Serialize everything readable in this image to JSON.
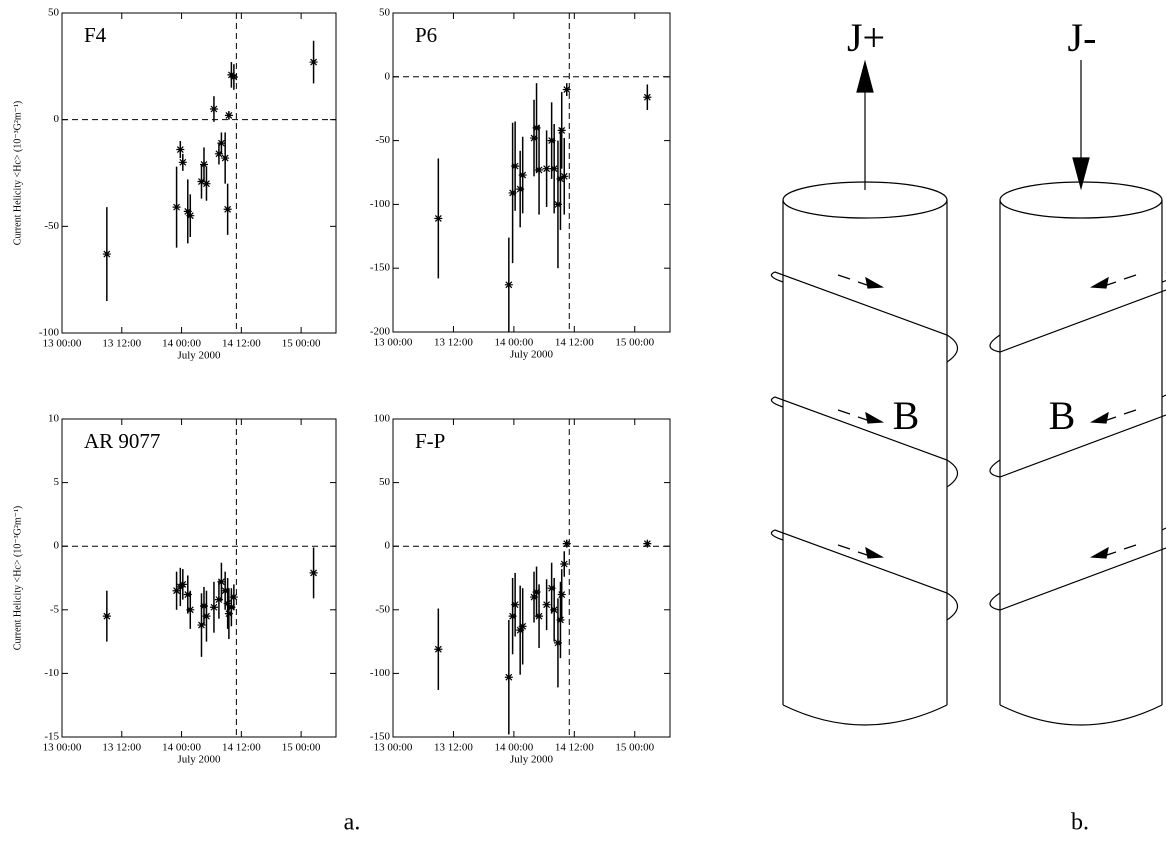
{
  "chart_data": [
    {
      "type": "scatter",
      "label": "F4",
      "xlabel": "July 2000",
      "ylabel": "Current Helicity <Hc> (10⁻³G²m⁻¹)",
      "x": [
        "13 09:00",
        "13 23:00",
        "13 23:45",
        "14 00:15",
        "14 01:15",
        "14 01:45",
        "14 04:00",
        "14 04:30",
        "14 05:00",
        "14 06:30",
        "14 07:30",
        "14 08:00",
        "14 08:45",
        "14 09:15",
        "14 09:30",
        "14 10:00",
        "14 10:30",
        "15 02:30"
      ],
      "values": [
        -63,
        -41,
        -14,
        -20,
        -43,
        -45,
        -29,
        -21,
        -30,
        5,
        -16,
        -11,
        -18,
        -42,
        2,
        21,
        20,
        27
      ],
      "errors": [
        22,
        19,
        4,
        4,
        15,
        10,
        8,
        8,
        8,
        6,
        5,
        5,
        12,
        12,
        2,
        6,
        6,
        10
      ],
      "xlim": [
        "13 00:00",
        "15 07:00"
      ],
      "xticks": [
        "13 00:00",
        "13 12:00",
        "14 00:00",
        "14 12:00",
        "15 00:00"
      ],
      "ylim": [
        -100,
        50
      ],
      "yticks": [
        -100,
        -50,
        0,
        50
      ],
      "hline": 0,
      "vline": "14 11:00",
      "color": "#000000"
    },
    {
      "type": "scatter",
      "label": "P6",
      "xlabel": "July 2000",
      "x": [
        "13 09:00",
        "13 23:00",
        "13 23:45",
        "14 00:15",
        "14 01:15",
        "14 01:45",
        "14 04:00",
        "14 04:30",
        "14 05:00",
        "14 06:30",
        "14 07:30",
        "14 08:00",
        "14 08:45",
        "14 09:15",
        "14 09:30",
        "14 10:00",
        "14 10:30",
        "15 02:30"
      ],
      "values": [
        -111,
        -163,
        -91,
        -70,
        -88,
        -77,
        -48,
        -40,
        -73,
        -72,
        -50,
        -72,
        -100,
        -80,
        -42,
        -78,
        -10,
        -16
      ],
      "errors": [
        47,
        37,
        55,
        35,
        30,
        30,
        30,
        35,
        35,
        30,
        30,
        35,
        50,
        40,
        30,
        30,
        5,
        10
      ],
      "xlim": [
        "13 00:00",
        "15 07:00"
      ],
      "xticks": [
        "13 00:00",
        "13 12:00",
        "14 00:00",
        "14 12:00",
        "15 00:00"
      ],
      "ylim": [
        -200,
        50
      ],
      "yticks": [
        -200,
        -150,
        -100,
        -50,
        0,
        50
      ],
      "hline": 0,
      "vline": "14 11:00",
      "color": "#000000"
    },
    {
      "type": "scatter",
      "label": "AR 9077",
      "xlabel": "July 2000",
      "ylabel": "Current Helicity <Hc> (10⁻³G²m⁻¹)",
      "x": [
        "13 09:00",
        "13 23:00",
        "13 23:45",
        "14 00:15",
        "14 01:15",
        "14 01:45",
        "14 04:00",
        "14 04:30",
        "14 05:00",
        "14 06:30",
        "14 07:30",
        "14 08:00",
        "14 08:45",
        "14 09:15",
        "14 09:30",
        "14 10:00",
        "14 10:30",
        "15 02:30"
      ],
      "values": [
        -5.5,
        -3.5,
        -3.2,
        -3.0,
        -3.8,
        -5.0,
        -6.2,
        -4.7,
        -5.5,
        -4.8,
        -4.2,
        -2.8,
        -3.5,
        -4.5,
        -5.3,
        -4.8,
        -4.0,
        -2.1
      ],
      "errors": [
        2,
        1.5,
        1.5,
        1.2,
        1.5,
        1.5,
        2.5,
        1.5,
        2,
        2,
        1.5,
        1.5,
        1.5,
        2,
        2,
        1.5,
        1,
        2
      ],
      "xlim": [
        "13 00:00",
        "15 07:00"
      ],
      "xticks": [
        "13 00:00",
        "13 12:00",
        "14 00:00",
        "14 12:00",
        "15 00:00"
      ],
      "ylim": [
        -15,
        10
      ],
      "yticks": [
        -15,
        -10,
        -5,
        0,
        5,
        10
      ],
      "hline": 0,
      "vline": "14 11:00",
      "color": "#000000"
    },
    {
      "type": "scatter",
      "label": "F-P",
      "xlabel": "July 2000",
      "x": [
        "13 09:00",
        "13 23:00",
        "13 23:45",
        "14 00:15",
        "14 01:15",
        "14 01:45",
        "14 04:00",
        "14 04:30",
        "14 05:00",
        "14 06:30",
        "14 07:30",
        "14 08:00",
        "14 08:45",
        "14 09:15",
        "14 09:30",
        "14 10:00",
        "14 10:30",
        "15 02:30"
      ],
      "values": [
        -81,
        -103,
        -55,
        -46,
        -66,
        -63,
        -40,
        -36,
        -55,
        -46,
        -33,
        -50,
        -76,
        -58,
        -38,
        -14,
        2,
        2
      ],
      "errors": [
        32,
        45,
        30,
        25,
        35,
        30,
        20,
        20,
        25,
        20,
        20,
        25,
        35,
        30,
        20,
        10,
        3,
        2
      ],
      "xlim": [
        "13 00:00",
        "15 07:00"
      ],
      "xticks": [
        "13 00:00",
        "13 12:00",
        "14 00:00",
        "14 12:00",
        "15 00:00"
      ],
      "ylim": [
        -150,
        100
      ],
      "yticks": [
        -150,
        -100,
        -50,
        0,
        50,
        100
      ],
      "hline": 0,
      "vline": "14 11:00",
      "color": "#000000"
    }
  ],
  "diagram": {
    "j_plus": "J+",
    "j_minus": "J-",
    "b_left": "B",
    "b_right": "B"
  },
  "captions": {
    "a": "a.",
    "b": "b."
  }
}
